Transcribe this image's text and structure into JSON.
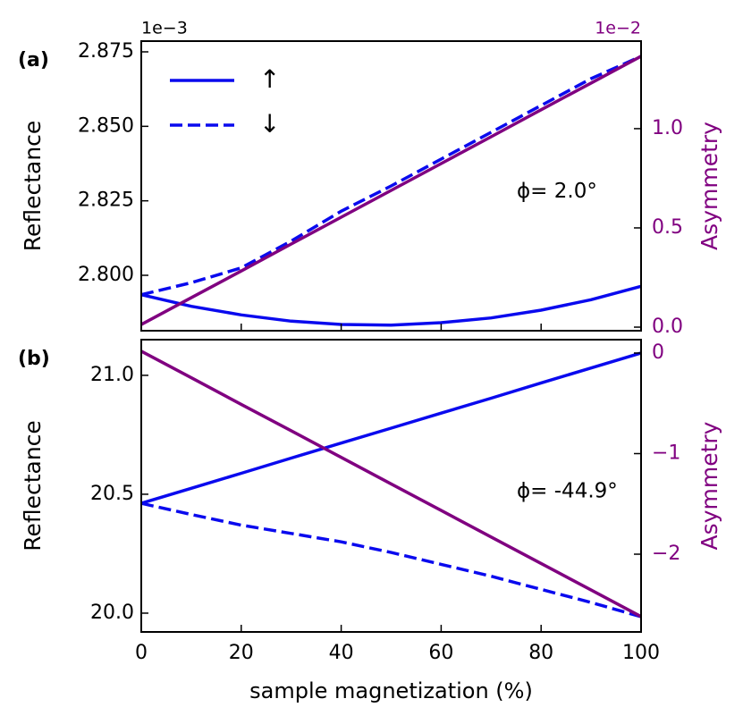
{
  "chart_data": [
    {
      "type": "line",
      "panel_label": "(a)",
      "annotation": "ϕ= 2.0°",
      "ylabel": "Reflectance",
      "y2label": "Asymmetry",
      "y_offset_label": "1e−3",
      "y2_offset_label": "1e−2",
      "x": [
        0,
        10,
        20,
        30,
        40,
        50,
        60,
        70,
        80,
        90,
        100
      ],
      "xlim": [
        0,
        100
      ],
      "xticks": [
        0,
        20,
        40,
        60,
        80,
        100
      ],
      "ylim": [
        2.7814,
        2.8786
      ],
      "yticks": [
        {
          "value": 2.8,
          "label": "2.800"
        },
        {
          "value": 2.825,
          "label": "2.825"
        },
        {
          "value": 2.85,
          "label": "2.850"
        },
        {
          "value": 2.875,
          "label": "2.875"
        }
      ],
      "y2lim": [
        -0.018,
        1.441
      ],
      "y2ticks": [
        {
          "value": 0,
          "label": "0.0"
        },
        {
          "value": 0.5,
          "label": "0.5"
        },
        {
          "value": 1,
          "label": "1.0"
        }
      ],
      "y2color": "#800080",
      "legend": "upper left",
      "series": [
        {
          "name": "↑",
          "color": "#0a0aee",
          "style": "solid",
          "values": [
            2.7935,
            2.7896,
            2.7867,
            2.7846,
            2.7835,
            2.7833,
            2.7841,
            2.7857,
            2.7883,
            2.7918,
            2.7963
          ]
        },
        {
          "name": "↓",
          "color": "#0a0aee",
          "style": "dashed",
          "values": [
            2.7935,
            2.7975,
            2.8025,
            2.8115,
            2.8215,
            2.83,
            2.839,
            2.848,
            2.857,
            2.866,
            2.8735
          ]
        },
        {
          "color": "#800080",
          "style": "solid",
          "axis": "y2",
          "values": [
            0.013,
            0.148,
            0.283,
            0.419,
            0.554,
            0.689,
            0.824,
            0.959,
            1.095,
            1.23,
            1.365
          ]
        }
      ]
    },
    {
      "type": "line",
      "panel_label": "(b)",
      "annotation": "ϕ= -44.9°",
      "xlabel": "sample magnetization (%)",
      "ylabel": "Reflectance",
      "y2label": "Asymmetry",
      "x": [
        0,
        10,
        20,
        30,
        40,
        50,
        60,
        70,
        80,
        90,
        100
      ],
      "xlim": [
        0,
        100
      ],
      "xticks": [
        0,
        20,
        40,
        60,
        80,
        100
      ],
      "ylim": [
        19.921,
        21.15
      ],
      "yticks": [
        {
          "value": 20,
          "label": "20.0"
        },
        {
          "value": 20.5,
          "label": "20.5"
        },
        {
          "value": 21,
          "label": "21.0"
        }
      ],
      "y2lim": [
        -2.773,
        0.133
      ],
      "y2ticks": [
        {
          "value": -2,
          "label": "−2"
        },
        {
          "value": -1,
          "label": "−1"
        },
        0
      ],
      "y2color": "#800080",
      "series": [
        {
          "color": "#0a0aee",
          "style": "solid",
          "values": [
            20.462,
            20.525,
            20.588,
            20.652,
            20.715,
            20.778,
            20.841,
            20.904,
            20.968,
            21.031,
            21.094
          ]
        },
        {
          "color": "#0a0aee",
          "style": "dashed",
          "values": [
            20.462,
            20.415,
            20.37,
            20.335,
            20.3,
            20.255,
            20.205,
            20.155,
            20.1,
            20.045,
            19.985
          ]
        },
        {
          "color": "#800080",
          "style": "solid",
          "axis": "y2",
          "values": [
            0.018,
            -0.246,
            -0.51,
            -0.773,
            -1.037,
            -1.301,
            -1.565,
            -1.829,
            -2.092,
            -2.356,
            -2.62
          ]
        }
      ]
    }
  ]
}
